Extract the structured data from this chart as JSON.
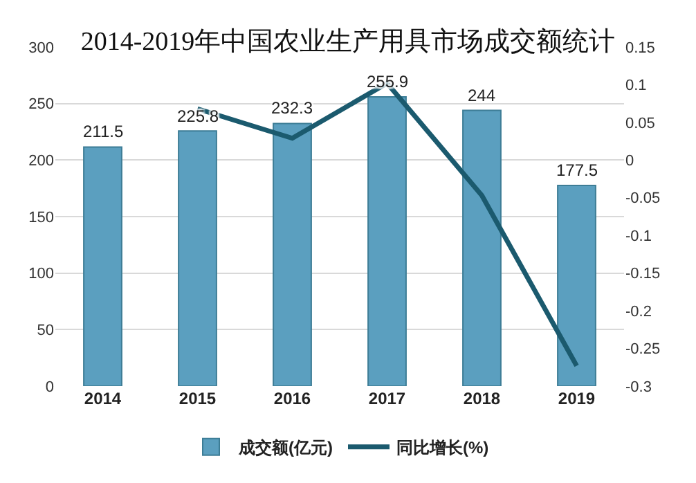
{
  "chart_data": {
    "type": "bar",
    "title": "2014-2019年中国农业生产用具市场成交额统计",
    "categories": [
      "2014",
      "2015",
      "2016",
      "2017",
      "2018",
      "2019"
    ],
    "series": [
      {
        "name": "成交额(亿元)",
        "color": "#5b9fbf",
        "values": [
          211.5,
          225.8,
          232.3,
          255.9,
          244,
          177.5
        ],
        "value_labels": [
          "211.5",
          "225.8",
          "232.3",
          "255.9",
          "244",
          "177.5"
        ]
      },
      {
        "name": "同比增长(%)",
        "type": "line",
        "axis": "y2",
        "color": "#1b5a6e",
        "values": [
          null,
          0.068,
          0.029,
          0.102,
          -0.047,
          -0.273
        ]
      }
    ],
    "ylim": [
      0,
      300
    ],
    "yticks": [
      0,
      50,
      100,
      150,
      200,
      250,
      300
    ],
    "y2lim": [
      -0.3,
      0.15
    ],
    "y2ticks": [
      -0.3,
      -0.25,
      -0.2,
      -0.15,
      -0.1,
      -0.05,
      0,
      0.05,
      0.1,
      0.15
    ],
    "grid": "y",
    "legend": "bottom",
    "marker": "none",
    "line_style": "solid"
  }
}
